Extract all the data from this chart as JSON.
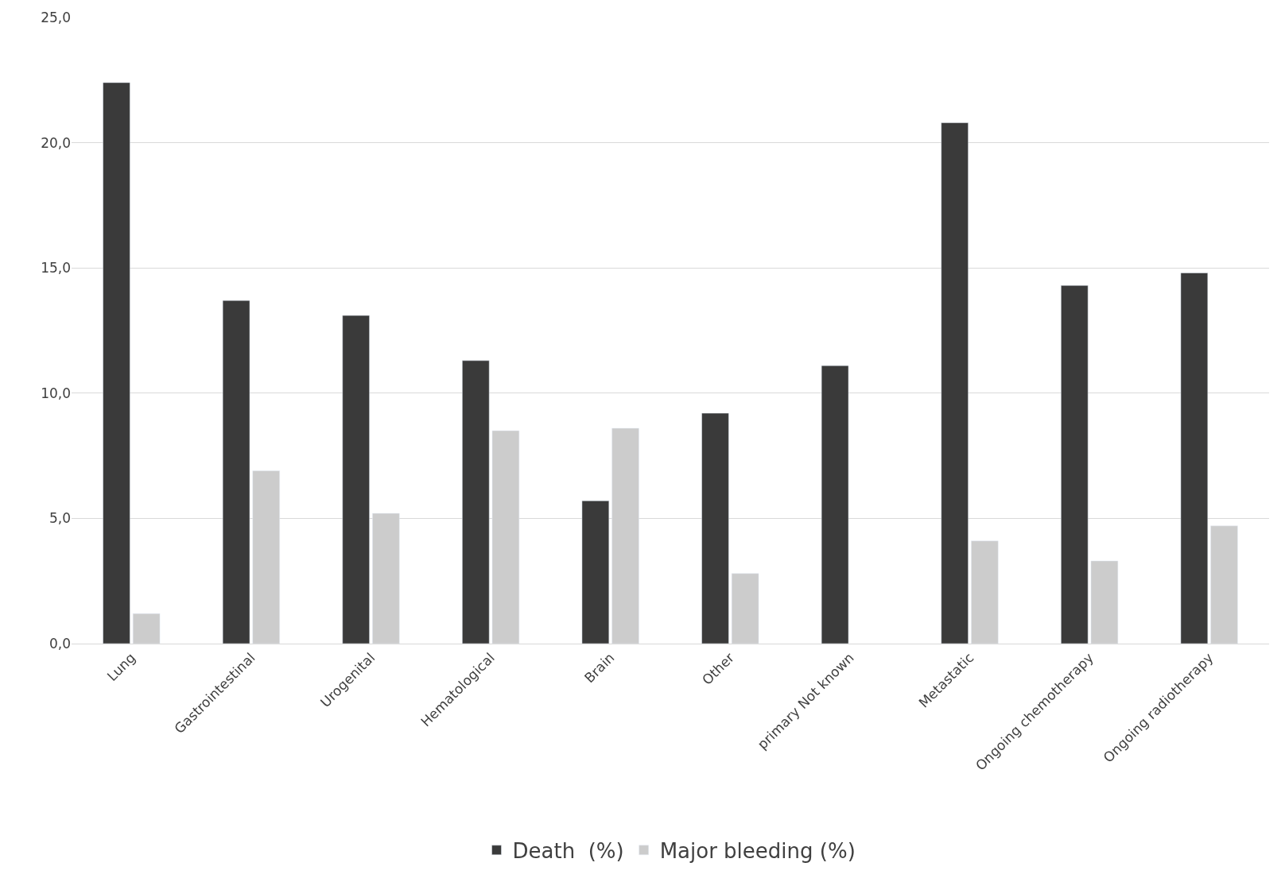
{
  "chart_data": {
    "type": "bar",
    "categories": [
      "Lung",
      "Gastrointestinal",
      "Urogenital",
      "Hematological",
      "Brain",
      "Other",
      "primary Not known",
      "Metastatic",
      "Ongoing chemotherapy",
      "Ongoing radiotherapy"
    ],
    "series": [
      {
        "name": "Death  (%)",
        "color": "#3a3a3a",
        "values": [
          22.4,
          13.7,
          13.1,
          11.3,
          5.7,
          9.2,
          11.1,
          20.8,
          14.3,
          14.8
        ]
      },
      {
        "name": "Major bleeding (%)",
        "color": "#cccccc",
        "values": [
          1.2,
          6.9,
          5.2,
          8.5,
          8.6,
          2.8,
          null,
          4.1,
          3.3,
          4.7
        ]
      }
    ],
    "ylim": [
      0,
      25
    ],
    "yticks": [
      {
        "value": 0,
        "label": "0,0"
      },
      {
        "value": 5,
        "label": "5,0"
      },
      {
        "value": 10,
        "label": "10,0"
      },
      {
        "value": 15,
        "label": "15,0"
      },
      {
        "value": 20,
        "label": "20,0"
      },
      {
        "value": 25,
        "label": "25,0"
      }
    ],
    "grid": "y",
    "legend": "bottom"
  }
}
